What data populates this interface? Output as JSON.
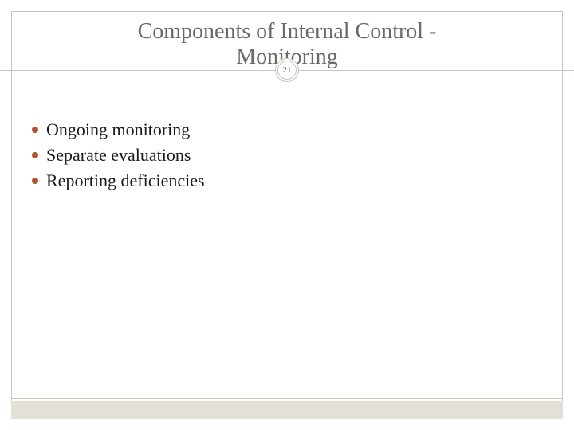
{
  "slide": {
    "title_line1": "Components of Internal Control -",
    "title_line2": "Monitoring",
    "title_color": "#6a6a6a",
    "title_fontsize": 28,
    "page_number": "21",
    "badge_text_color": "#6a6a6a",
    "background_color": "#ffffff",
    "border_color": "#c9c5bb",
    "bottom_bar_color": "#e3e0d7",
    "bullets": [
      {
        "text": "Ongoing monitoring",
        "dot_color": "#b15433"
      },
      {
        "text": "Separate evaluations",
        "dot_color": "#b15433"
      },
      {
        "text": "Reporting deficiencies",
        "dot_color": "#b15433"
      }
    ],
    "bullet_text_color": "#1a1a1a",
    "bullet_fontsize": 22
  }
}
